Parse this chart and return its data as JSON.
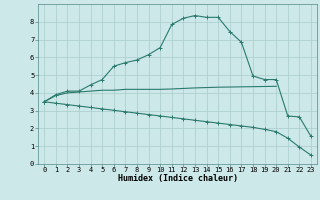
{
  "xlabel": "Humidex (Indice chaleur)",
  "background_color": "#cce8e8",
  "grid_color": "#aacccc",
  "line_color": "#2a7a6e",
  "xlim": [
    -0.5,
    23.5
  ],
  "ylim": [
    0,
    9
  ],
  "xticks": [
    0,
    1,
    2,
    3,
    4,
    5,
    6,
    7,
    8,
    9,
    10,
    11,
    12,
    13,
    14,
    15,
    16,
    17,
    18,
    19,
    20,
    21,
    22,
    23
  ],
  "yticks": [
    0,
    1,
    2,
    3,
    4,
    5,
    6,
    7,
    8
  ],
  "curve1_x": [
    0,
    1,
    2,
    3,
    4,
    5,
    6,
    7,
    8,
    9,
    10,
    11,
    12,
    13,
    14,
    15,
    16,
    17,
    18,
    19,
    20,
    21,
    22,
    23
  ],
  "curve1_y": [
    3.5,
    3.9,
    4.1,
    4.1,
    4.45,
    4.75,
    5.5,
    5.7,
    5.85,
    6.15,
    6.55,
    7.85,
    8.2,
    8.35,
    8.25,
    8.25,
    7.45,
    6.85,
    4.95,
    4.75,
    4.75,
    2.7,
    2.65,
    1.55
  ],
  "curve2_x": [
    0,
    1,
    2,
    3,
    4,
    5,
    6,
    7,
    8,
    9,
    10,
    11,
    12,
    13,
    14,
    15,
    16,
    17,
    18,
    19,
    20
  ],
  "curve2_y": [
    3.5,
    3.85,
    4.0,
    4.05,
    4.1,
    4.15,
    4.15,
    4.2,
    4.2,
    4.2,
    4.2,
    4.22,
    4.25,
    4.28,
    4.3,
    4.32,
    4.33,
    4.34,
    4.35,
    4.36,
    4.37
  ],
  "curve3_x": [
    0,
    1,
    2,
    3,
    4,
    5,
    6,
    7,
    8,
    9,
    10,
    11,
    12,
    13,
    14,
    15,
    16,
    17,
    18,
    19,
    20,
    21,
    22,
    23
  ],
  "curve3_y": [
    3.5,
    3.42,
    3.34,
    3.26,
    3.18,
    3.1,
    3.02,
    2.94,
    2.86,
    2.78,
    2.7,
    2.62,
    2.54,
    2.46,
    2.38,
    2.3,
    2.22,
    2.14,
    2.06,
    1.95,
    1.82,
    1.45,
    0.95,
    0.5
  ]
}
